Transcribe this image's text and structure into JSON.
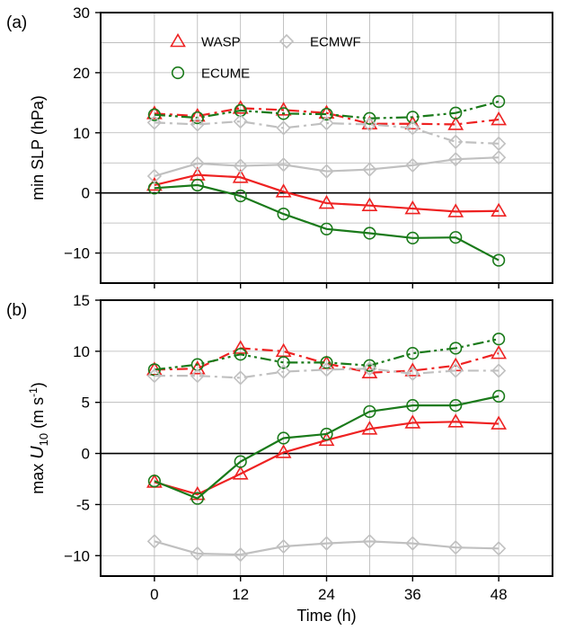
{
  "chart_data": [
    {
      "type": "line",
      "panel_label": "(a)",
      "xlabel": "",
      "ylabel": "min SLP (hPa)",
      "x": [
        0,
        6,
        12,
        18,
        24,
        30,
        36,
        42,
        48
      ],
      "xticks": [
        0,
        12,
        24,
        36,
        48
      ],
      "xlim": [
        -7.5,
        55.5
      ],
      "yticks": [
        -10,
        0,
        10,
        20,
        30
      ],
      "yticklabels": [
        "−10",
        "0",
        "10",
        "20",
        "30"
      ],
      "ylim": [
        -15,
        30
      ],
      "grid": true,
      "zero_line": true,
      "legend": {
        "position": "top-left",
        "entries": [
          {
            "name": "WASP",
            "color": "#ee2222",
            "marker": "triangle"
          },
          {
            "name": "ECMWF",
            "color": "#c0c0c0",
            "marker": "diamond"
          },
          {
            "name": "ECUME",
            "color": "#1a7a1a",
            "marker": "circle"
          }
        ]
      },
      "series": [
        {
          "name": "WASP",
          "style": "dashdot",
          "color": "#ee2222",
          "marker": "triangle",
          "values": [
            13.2,
            12.8,
            14.1,
            13.8,
            13.3,
            11.5,
            11.5,
            11.4,
            12.2
          ]
        },
        {
          "name": "ECUME",
          "style": "dashdotdot",
          "color": "#1a7a1a",
          "marker": "circle",
          "values": [
            13.0,
            12.5,
            13.7,
            13.2,
            13.1,
            12.4,
            12.6,
            13.3,
            15.2
          ]
        },
        {
          "name": "ECMWF",
          "style": "dashdot",
          "color": "#c0c0c0",
          "marker": "diamond",
          "values": [
            11.7,
            11.4,
            11.9,
            10.8,
            11.6,
            11.4,
            10.8,
            8.5,
            8.2
          ]
        },
        {
          "name": "WASP",
          "style": "solid",
          "color": "#ee2222",
          "marker": "triangle",
          "values": [
            1.3,
            3.0,
            2.6,
            0.2,
            -1.7,
            -2.1,
            -2.6,
            -3.1,
            -3.0
          ]
        },
        {
          "name": "ECUME",
          "style": "solid",
          "color": "#1a7a1a",
          "marker": "circle",
          "values": [
            0.8,
            1.3,
            -0.5,
            -3.5,
            -6.0,
            -6.7,
            -7.5,
            -7.4,
            -11.2
          ]
        },
        {
          "name": "ECMWF",
          "style": "solid",
          "color": "#c0c0c0",
          "marker": "diamond",
          "values": [
            2.8,
            4.9,
            4.5,
            4.7,
            3.6,
            3.9,
            4.6,
            5.6,
            5.9
          ]
        }
      ]
    },
    {
      "type": "line",
      "panel_label": "(b)",
      "xlabel": "Time (h)",
      "ylabel": "max U10 (m s-1)",
      "ylabel_parts": {
        "pre": "max ",
        "var": "U",
        "sub": "10",
        "unit_pre": " (m s",
        "sup": "-1",
        "unit_post": ")"
      },
      "x": [
        0,
        6,
        12,
        18,
        24,
        30,
        36,
        42,
        48
      ],
      "xticks": [
        0,
        12,
        24,
        36,
        48
      ],
      "xticklabels": [
        "0",
        "12",
        "24",
        "36",
        "48"
      ],
      "xlim": [
        -7.5,
        55.5
      ],
      "yticks": [
        -10,
        -5,
        0,
        5,
        10,
        15
      ],
      "yticklabels": [
        "−10",
        "-5",
        "0",
        "5",
        "10",
        "15"
      ],
      "ylim": [
        -12,
        15
      ],
      "grid": true,
      "zero_line": true,
      "series": [
        {
          "name": "WASP",
          "style": "dashdot",
          "color": "#ee2222",
          "marker": "triangle",
          "values": [
            8.2,
            8.3,
            10.3,
            10.0,
            8.8,
            7.9,
            8.1,
            8.6,
            9.8
          ]
        },
        {
          "name": "ECUME",
          "style": "dashdotdot",
          "color": "#1a7a1a",
          "marker": "circle",
          "values": [
            8.2,
            8.7,
            9.7,
            8.9,
            8.9,
            8.6,
            9.8,
            10.3,
            11.2
          ]
        },
        {
          "name": "ECMWF",
          "style": "dashdot",
          "color": "#c0c0c0",
          "marker": "diamond",
          "values": [
            7.6,
            7.6,
            7.4,
            8.0,
            8.2,
            8.3,
            7.8,
            8.1,
            8.1
          ]
        },
        {
          "name": "WASP",
          "style": "solid",
          "color": "#ee2222",
          "marker": "triangle",
          "values": [
            -2.8,
            -4.0,
            -2.0,
            0.1,
            1.3,
            2.4,
            3.0,
            3.1,
            2.9
          ]
        },
        {
          "name": "ECUME",
          "style": "solid",
          "color": "#1a7a1a",
          "marker": "circle",
          "values": [
            -2.7,
            -4.4,
            -0.8,
            1.5,
            1.9,
            4.1,
            4.7,
            4.7,
            5.6
          ]
        },
        {
          "name": "ECMWF",
          "style": "solid",
          "color": "#c0c0c0",
          "marker": "diamond",
          "values": [
            -8.6,
            -9.8,
            -9.9,
            -9.1,
            -8.8,
            -8.6,
            -8.8,
            -9.2,
            -9.3
          ]
        }
      ]
    }
  ]
}
